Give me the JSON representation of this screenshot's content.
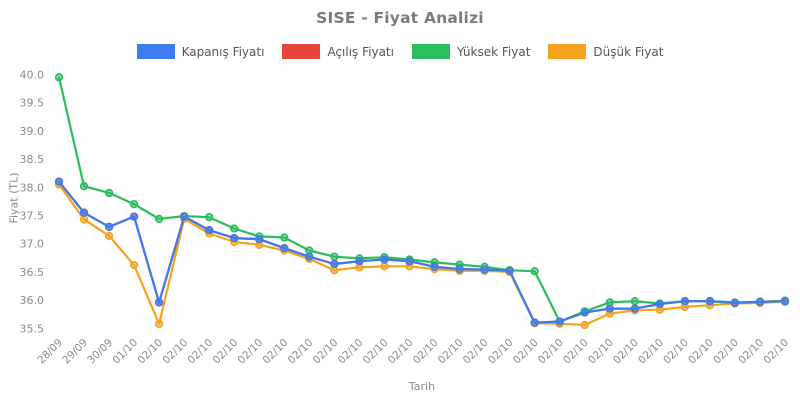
{
  "title": "SISE - Fiyat Analizi",
  "axis": {
    "xlabel": "Tarih",
    "ylabel": "Fiyat (TL)"
  },
  "colors": {
    "close": "#3D7BF0",
    "open": "#E8453C",
    "high": "#2BBD5D",
    "low": "#F5A21D",
    "title_text": "#7b7b7b",
    "legend_text": "#555555",
    "tick_text": "#8a8a8a",
    "background": "#ffffff"
  },
  "chart_data": {
    "type": "line",
    "title": "SISE - Fiyat Analizi",
    "xlabel": "Tarih",
    "ylabel": "Fiyat (TL)",
    "ylim": [
      35.5,
      40.0
    ],
    "y_tick_step": 0.5,
    "grid": false,
    "legend_position": "top-center",
    "marker": "circle",
    "y_ticks": [
      "40.0",
      "39.5",
      "39.0",
      "38.5",
      "38.0",
      "37.5",
      "37.0",
      "36.5",
      "36.0",
      "35.5"
    ],
    "x_labels": [
      "28/09",
      "29/09",
      "30/09",
      "01/10",
      "02/10",
      "02/10",
      "02/10",
      "02/10",
      "02/10",
      "02/10",
      "02/10",
      "02/10",
      "02/10",
      "02/10",
      "02/10",
      "02/10",
      "02/10",
      "02/10",
      "02/10",
      "02/10",
      "02/10",
      "02/10",
      "02/10",
      "02/10",
      "02/10",
      "02/10",
      "02/10",
      "02/10",
      "02/10",
      "02/10"
    ],
    "series": [
      {
        "name": "Kapanış Fiyatı",
        "color": "#3D7BF0",
        "values": [
          38.1,
          37.55,
          37.3,
          37.48,
          35.96,
          37.48,
          37.24,
          37.1,
          37.08,
          36.92,
          36.77,
          36.64,
          36.69,
          36.72,
          36.69,
          36.59,
          36.55,
          36.54,
          36.52,
          35.6,
          35.62,
          35.78,
          35.85,
          35.85,
          35.93,
          35.98,
          35.98,
          35.95,
          35.97,
          35.98
        ]
      },
      {
        "name": "Açılış Fiyatı",
        "color": "#E8453C",
        "values": [
          38.1,
          37.55,
          37.3,
          37.48,
          35.96,
          37.48,
          37.24,
          37.1,
          37.08,
          36.92,
          36.77,
          36.64,
          36.69,
          36.72,
          36.69,
          36.59,
          36.55,
          36.54,
          36.52,
          35.6,
          35.62,
          35.78,
          35.85,
          35.85,
          35.93,
          35.98,
          35.98,
          35.95,
          35.97,
          35.98
        ]
      },
      {
        "name": "Yüksek Fiyat",
        "color": "#2BBD5D",
        "values": [
          39.95,
          38.02,
          37.9,
          37.7,
          37.44,
          37.49,
          37.47,
          37.27,
          37.13,
          37.11,
          36.88,
          36.77,
          36.74,
          36.76,
          36.72,
          36.67,
          36.63,
          36.59,
          36.53,
          36.51,
          35.62,
          35.8,
          35.96,
          35.98,
          35.94,
          35.98,
          35.98,
          35.96,
          35.97,
          35.99
        ]
      },
      {
        "name": "Düşük Fiyat",
        "color": "#F5A21D",
        "values": [
          38.05,
          37.43,
          37.14,
          36.62,
          35.58,
          37.44,
          37.18,
          37.03,
          36.98,
          36.88,
          36.73,
          36.53,
          36.58,
          36.6,
          36.6,
          36.55,
          36.52,
          36.52,
          36.5,
          35.59,
          35.58,
          35.56,
          35.76,
          35.82,
          35.83,
          35.88,
          35.91,
          35.94,
          35.95,
          35.97
        ]
      }
    ]
  }
}
